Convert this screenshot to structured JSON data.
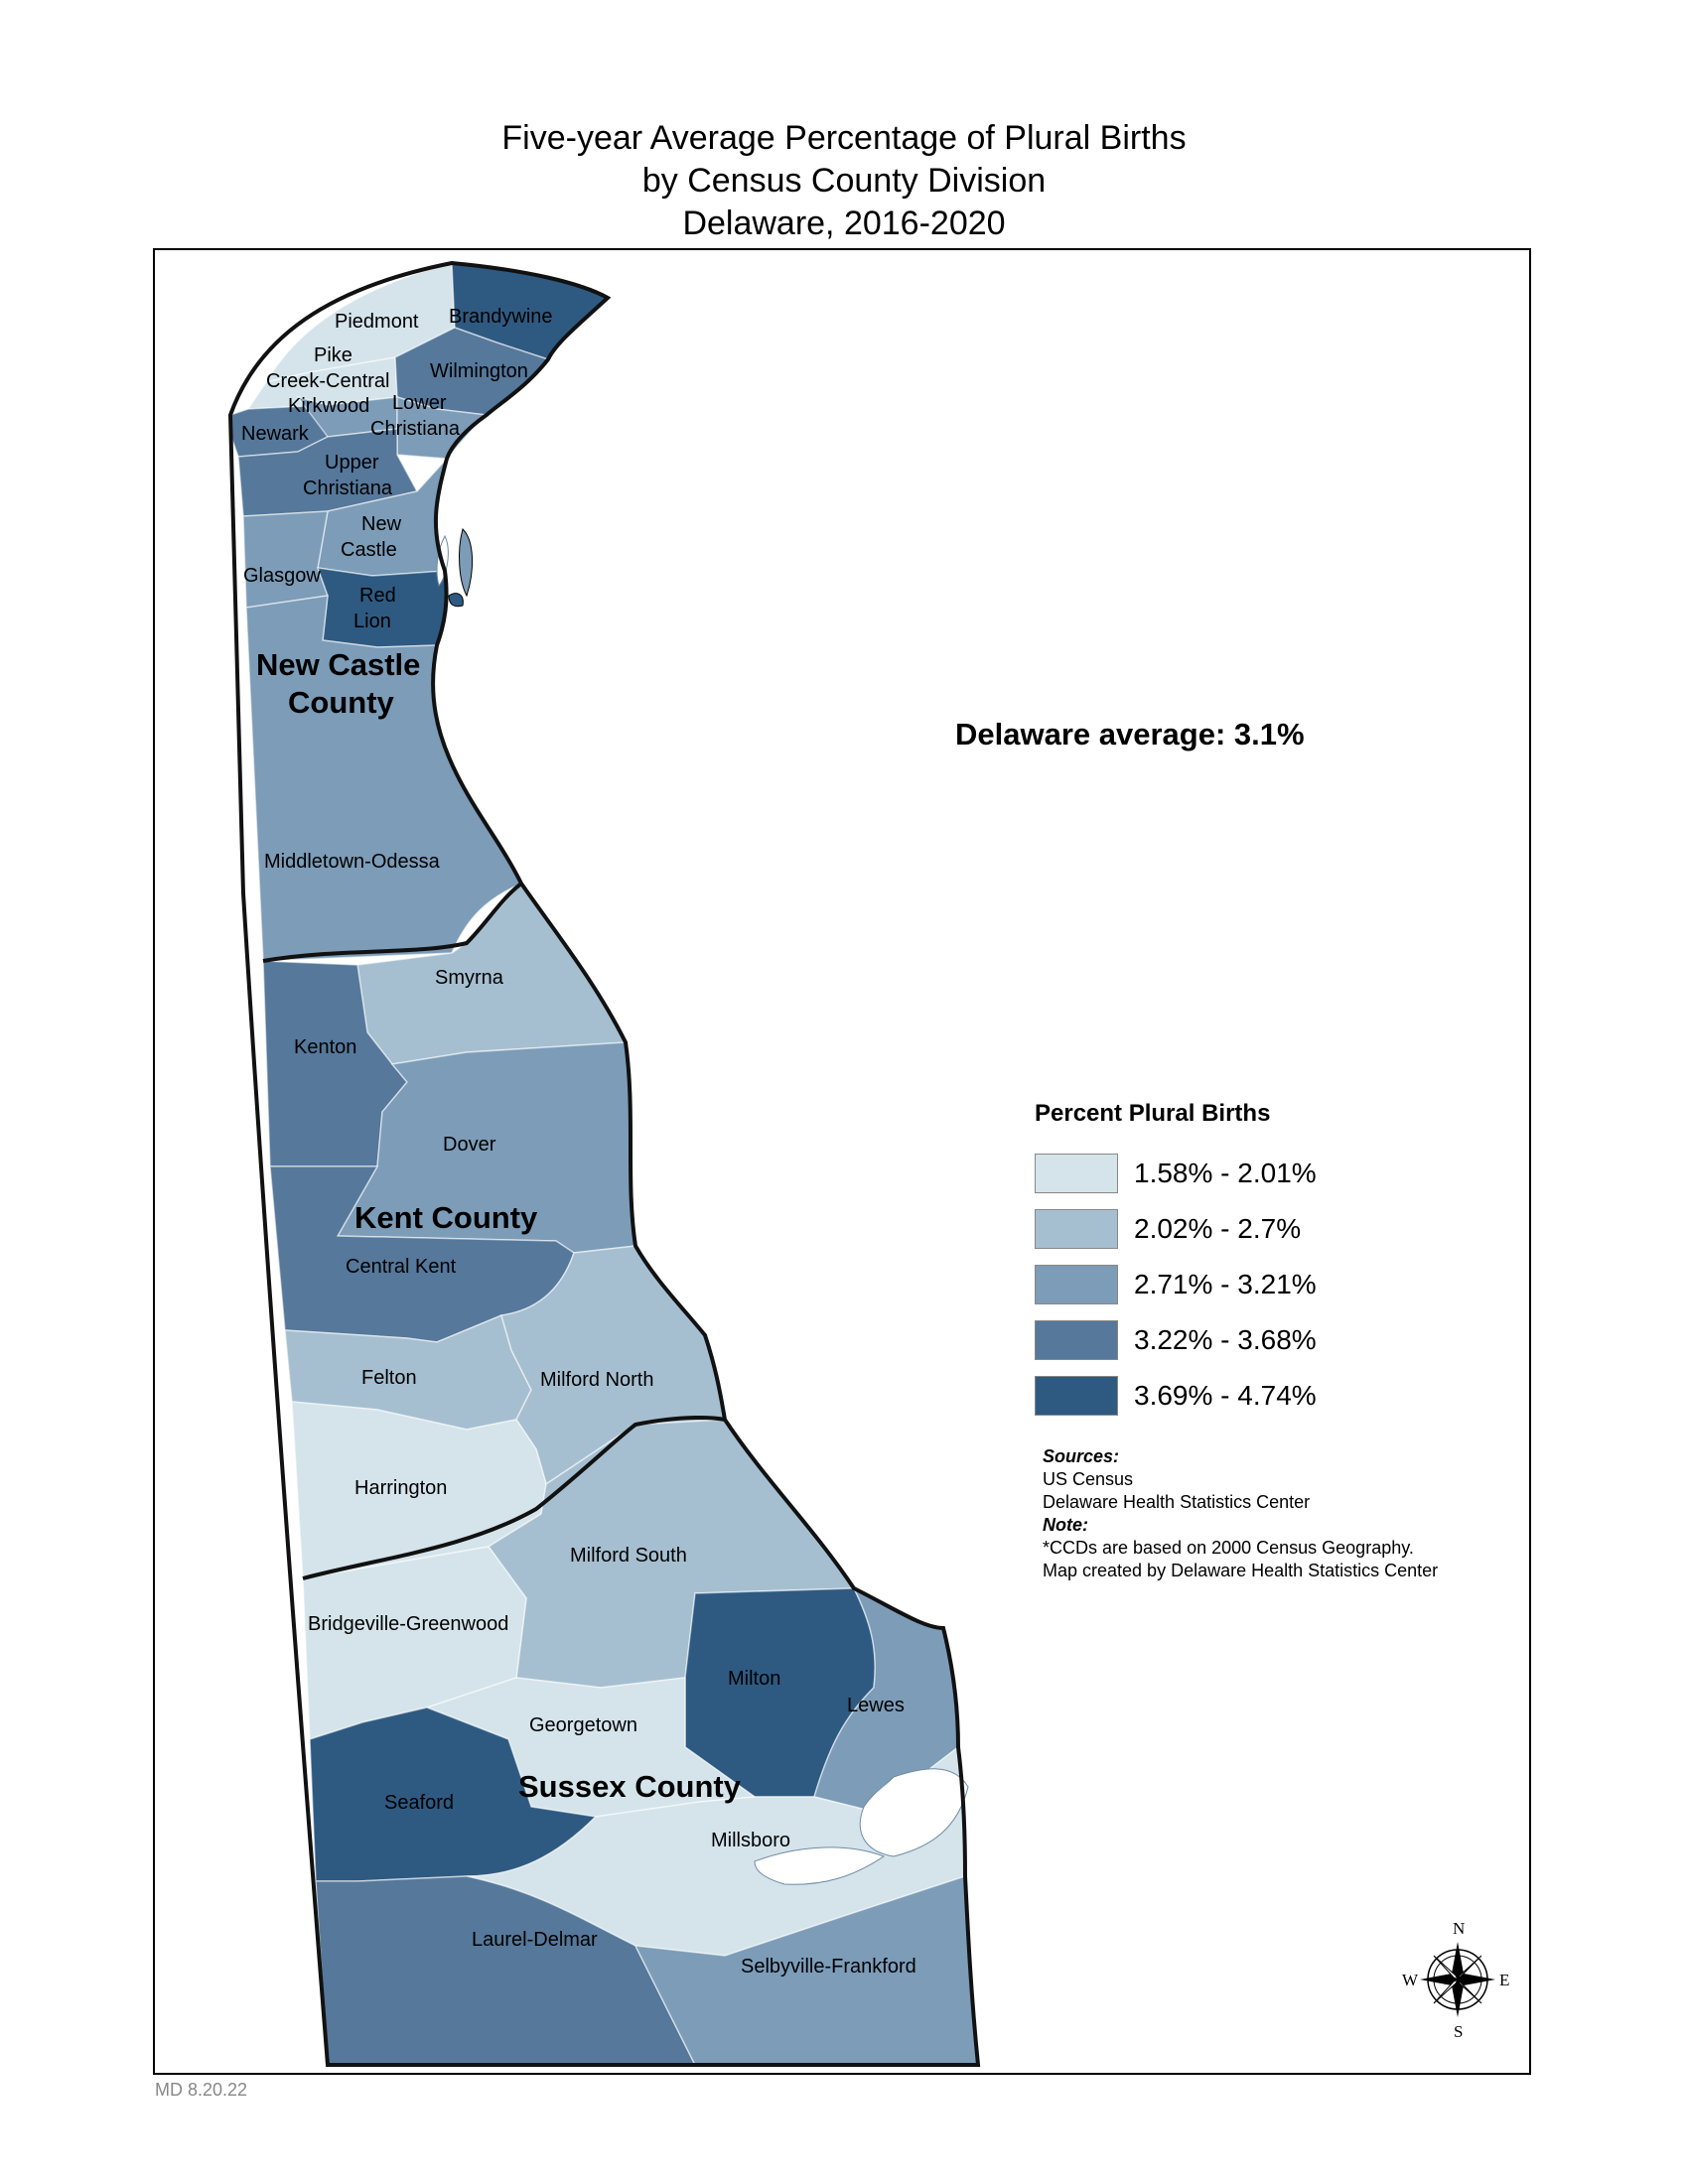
{
  "title": {
    "line1": "Five-year Average Percentage of Plural Births",
    "line2": "by Census County Division",
    "line3": "Delaware, 2016-2020"
  },
  "state_average": "Delaware average:  3.1%",
  "legend": {
    "title": "Percent Plural Births",
    "classes": [
      {
        "label": "1.58% - 2.01%",
        "color": "#d4e4ea"
      },
      {
        "label": "2.02% - 2.7%",
        "color": "#a6bfd0"
      },
      {
        "label": "2.71% - 3.21%",
        "color": "#7c9cb8"
      },
      {
        "label": "3.22% - 3.68%",
        "color": "#55789b"
      },
      {
        "label": "3.69% - 4.74%",
        "color": "#2e5a82"
      }
    ]
  },
  "notes": {
    "sources_heading": "Sources:",
    "source1": "US Census",
    "source2": "Delaware Health Statistics Center",
    "note_heading": "Note:",
    "note1": "*CCDs are based on 2000 Census Geography.",
    "note2": "Map created by Delaware Health Statistics Center"
  },
  "stamp": "MD 8.20.22",
  "counties": {
    "new_castle_1": "New Castle",
    "new_castle_2": "County",
    "kent": "Kent County",
    "sussex": "Sussex County"
  },
  "ccd": {
    "piedmont": "Piedmont",
    "brandywine": "Brandywine",
    "pike_1": "Pike",
    "pike_2": "Creek-Central",
    "wilmington": "Wilmington",
    "kirkwood": "Kirkwood",
    "lower_1": "Lower",
    "lower_2": "Christiana",
    "newark": "Newark",
    "upper_1": "Upper",
    "upper_2": "Christiana",
    "newcastle_1": "New",
    "newcastle_2": "Castle",
    "glasgow": "Glasgow",
    "redlion_1": "Red",
    "redlion_2": "Lion",
    "middletown": "Middletown-Odessa",
    "smyrna": "Smyrna",
    "kenton": "Kenton",
    "dover": "Dover",
    "central_kent": "Central Kent",
    "felton": "Felton",
    "milford_north": "Milford North",
    "harrington": "Harrington",
    "milford_south": "Milford South",
    "bridgeville": "Bridgeville-Greenwood",
    "milton": "Milton",
    "lewes": "Lewes",
    "georgetown": "Georgetown",
    "seaford": "Seaford",
    "millsboro": "Millsboro",
    "laurel": "Laurel-Delmar",
    "selbyville": "Selbyville-Frankford"
  },
  "ccd_class": {
    "piedmont": 0,
    "brandywine": 4,
    "pike": 0,
    "wilmington": 3,
    "kirkwood": 2,
    "lower_christiana": 2,
    "newark": 3,
    "upper_christiana": 3,
    "new_castle": 2,
    "glasgow": 2,
    "red_lion": 4,
    "middletown": 2,
    "smyrna": 1,
    "kenton": 3,
    "dover": 2,
    "central_kent": 3,
    "felton": 1,
    "milford_north": 1,
    "harrington": 0,
    "milford_south": 1,
    "bridgeville": 0,
    "milton": 4,
    "lewes": 2,
    "georgetown": 0,
    "seaford": 4,
    "millsboro": 0,
    "laurel": 3,
    "selbyville": 2
  },
  "compass": {
    "n": "N",
    "s": "S",
    "e": "E",
    "w": "W"
  }
}
